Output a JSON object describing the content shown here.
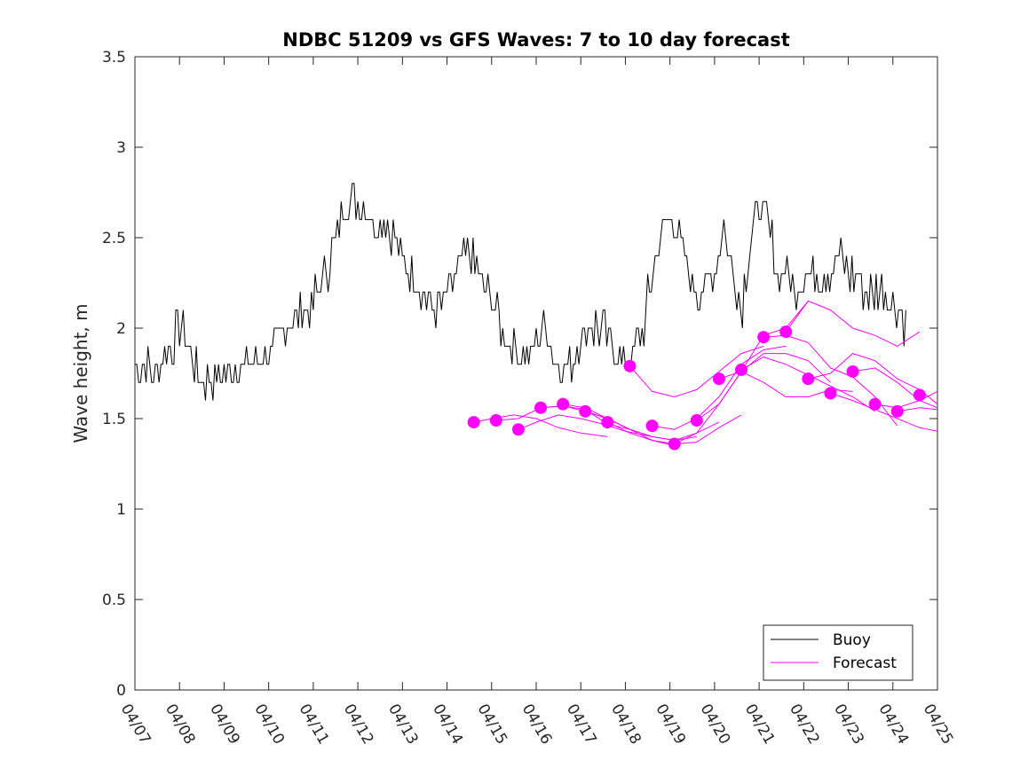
{
  "chart_data": {
    "type": "line",
    "title": "NDBC 51209 vs GFS Waves: 7 to 10 day forecast",
    "xlabel": "",
    "ylabel": "Wave height, m",
    "xlim": [
      "04/07",
      "04/25"
    ],
    "ylim": [
      0,
      3.5
    ],
    "x_tick_labels": [
      "04/07",
      "04/08",
      "04/09",
      "04/10",
      "04/11",
      "04/12",
      "04/13",
      "04/14",
      "04/15",
      "04/16",
      "04/17",
      "04/18",
      "04/19",
      "04/20",
      "04/21",
      "04/22",
      "04/23",
      "04/24",
      "04/25"
    ],
    "y_ticks": [
      0,
      0.5,
      1,
      1.5,
      2,
      2.5,
      3,
      3.5
    ],
    "y_tick_labels": [
      "0",
      "0.5",
      "1",
      "1.5",
      "2",
      "2.5",
      "3",
      "3.5"
    ],
    "grid": false,
    "legend_position": "bottom-right",
    "colors": {
      "buoy": "#000000",
      "forecast": "#ff00ff"
    },
    "buoy": {
      "name": "Buoy",
      "days": [
        0,
        0.2,
        0.4,
        0.6,
        0.8,
        1.0,
        1.2,
        1.4,
        1.6,
        1.8,
        2.0,
        2.2,
        2.4,
        2.6,
        2.8,
        3.0,
        3.2,
        3.4,
        3.6,
        3.8,
        4.0,
        4.2,
        4.4,
        4.6,
        4.8,
        5.0,
        5.2,
        5.4,
        5.6,
        5.8,
        6.0,
        6.2,
        6.4,
        6.6,
        6.8,
        7.0,
        7.2,
        7.4,
        7.6,
        7.8,
        8.0,
        8.2,
        8.4,
        8.6,
        8.8,
        9.0,
        9.2,
        9.4,
        9.6,
        9.8,
        10.0,
        10.2,
        10.4,
        10.6,
        10.8,
        11.0,
        11.2,
        11.4,
        11.6,
        11.8,
        12.0,
        12.2,
        12.4,
        12.6,
        12.8,
        13.0,
        13.2,
        13.4,
        13.6,
        13.8,
        14.0,
        14.2,
        14.4,
        14.6,
        14.8,
        15.0,
        15.2,
        15.4,
        15.6,
        15.8,
        16.0,
        16.2,
        16.4,
        16.6,
        16.8,
        17.0,
        17.2,
        17.3
      ],
      "values": [
        1.8,
        1.8,
        1.75,
        1.8,
        1.9,
        2.0,
        1.9,
        1.75,
        1.7,
        1.7,
        1.75,
        1.8,
        1.8,
        1.85,
        1.85,
        1.85,
        1.9,
        2.0,
        2.05,
        2.1,
        2.15,
        2.25,
        2.4,
        2.6,
        2.7,
        2.7,
        2.65,
        2.55,
        2.6,
        2.5,
        2.4,
        2.3,
        2.2,
        2.15,
        2.1,
        2.2,
        2.3,
        2.4,
        2.35,
        2.25,
        2.15,
        2.0,
        1.9,
        1.85,
        1.8,
        1.95,
        2.0,
        1.85,
        1.75,
        1.8,
        1.95,
        2.0,
        2.0,
        1.95,
        1.85,
        1.8,
        1.85,
        2.0,
        2.3,
        2.5,
        2.6,
        2.5,
        2.3,
        2.2,
        2.2,
        2.3,
        2.6,
        2.3,
        2.1,
        2.5,
        2.7,
        2.6,
        2.3,
        2.3,
        2.2,
        2.3,
        2.35,
        2.3,
        2.3,
        2.4,
        2.3,
        2.3,
        2.2,
        2.2,
        2.2,
        2.15,
        2.05,
        2.0
      ]
    },
    "forecast": {
      "name": "Forecast",
      "markers": [
        {
          "day": 7.6,
          "value": 1.48
        },
        {
          "day": 8.1,
          "value": 1.49
        },
        {
          "day": 8.6,
          "value": 1.44
        },
        {
          "day": 9.1,
          "value": 1.56
        },
        {
          "day": 9.6,
          "value": 1.58
        },
        {
          "day": 10.1,
          "value": 1.54
        },
        {
          "day": 10.6,
          "value": 1.48
        },
        {
          "day": 11.1,
          "value": 1.79
        },
        {
          "day": 11.6,
          "value": 1.46
        },
        {
          "day": 12.1,
          "value": 1.36
        },
        {
          "day": 12.6,
          "value": 1.49
        },
        {
          "day": 13.1,
          "value": 1.72
        },
        {
          "day": 13.6,
          "value": 1.77
        },
        {
          "day": 14.1,
          "value": 1.95
        },
        {
          "day": 14.6,
          "value": 1.98
        },
        {
          "day": 15.1,
          "value": 1.72
        },
        {
          "day": 15.6,
          "value": 1.64
        },
        {
          "day": 16.1,
          "value": 1.76
        },
        {
          "day": 16.6,
          "value": 1.58
        },
        {
          "day": 17.1,
          "value": 1.54
        },
        {
          "day": 17.6,
          "value": 1.63
        }
      ],
      "traces": [
        {
          "days": [
            7.6,
            8.0,
            8.5,
            9.0,
            9.5,
            10.0,
            10.6
          ],
          "values": [
            1.48,
            1.5,
            1.52,
            1.5,
            1.45,
            1.42,
            1.4
          ]
        },
        {
          "days": [
            8.1,
            8.6,
            9.1,
            9.6,
            10.1,
            10.6,
            11.1
          ],
          "values": [
            1.49,
            1.5,
            1.56,
            1.57,
            1.55,
            1.47,
            1.44
          ]
        },
        {
          "days": [
            8.6,
            9.0,
            9.5,
            10.0,
            10.5,
            11.0,
            11.6
          ],
          "values": [
            1.44,
            1.48,
            1.52,
            1.5,
            1.47,
            1.43,
            1.4
          ]
        },
        {
          "days": [
            9.1,
            9.6,
            10.1,
            10.6,
            11.1,
            11.6,
            12.1
          ],
          "values": [
            1.56,
            1.57,
            1.54,
            1.5,
            1.44,
            1.38,
            1.35
          ]
        },
        {
          "days": [
            9.6,
            10.1,
            10.6,
            11.1,
            11.6,
            12.1,
            12.6
          ],
          "values": [
            1.58,
            1.56,
            1.5,
            1.44,
            1.4,
            1.38,
            1.4
          ]
        },
        {
          "days": [
            10.1,
            10.6,
            11.1,
            11.6,
            12.1,
            12.6,
            13.1
          ],
          "values": [
            1.54,
            1.5,
            1.44,
            1.4,
            1.38,
            1.42,
            1.48
          ]
        },
        {
          "days": [
            10.6,
            11.1,
            11.6,
            12.1,
            12.6,
            13.1,
            13.6
          ],
          "values": [
            1.48,
            1.42,
            1.38,
            1.36,
            1.37,
            1.45,
            1.52
          ]
        },
        {
          "days": [
            11.1,
            11.6,
            12.1,
            12.6,
            13.1,
            13.6,
            14.1
          ],
          "values": [
            1.79,
            1.65,
            1.62,
            1.66,
            1.76,
            1.86,
            1.9
          ]
        },
        {
          "days": [
            11.6,
            12.1,
            12.6,
            13.1,
            13.6,
            14.1,
            14.6
          ],
          "values": [
            1.46,
            1.44,
            1.5,
            1.62,
            1.8,
            1.88,
            1.9
          ]
        },
        {
          "days": [
            12.1,
            12.6,
            13.1,
            13.6,
            14.1,
            14.6,
            15.1
          ],
          "values": [
            1.36,
            1.42,
            1.58,
            1.76,
            1.96,
            2.0,
            2.15
          ]
        },
        {
          "days": [
            12.6,
            13.1,
            13.6,
            14.1,
            14.6,
            15.1,
            15.6
          ],
          "values": [
            1.49,
            1.58,
            1.76,
            1.86,
            1.86,
            1.82,
            1.7
          ]
        },
        {
          "days": [
            13.1,
            13.6,
            14.1,
            14.6,
            15.1,
            15.6,
            16.1
          ],
          "values": [
            1.72,
            1.76,
            1.7,
            1.62,
            1.62,
            1.66,
            1.65
          ]
        },
        {
          "days": [
            13.6,
            14.1,
            14.6,
            15.1,
            15.6,
            16.1,
            16.6
          ],
          "values": [
            1.77,
            1.84,
            1.8,
            1.74,
            1.68,
            1.62,
            1.54
          ]
        },
        {
          "days": [
            14.1,
            14.6,
            15.1,
            15.6,
            16.1,
            16.6,
            17.1
          ],
          "values": [
            1.95,
            1.96,
            1.92,
            1.78,
            1.73,
            1.62,
            1.46
          ]
        },
        {
          "days": [
            14.6,
            15.1,
            15.6,
            16.1,
            16.6,
            17.1,
            17.6
          ],
          "values": [
            1.98,
            2.15,
            2.1,
            2.0,
            1.96,
            1.9,
            1.98
          ]
        },
        {
          "days": [
            15.1,
            15.6,
            16.1,
            16.6,
            17.1,
            17.6,
            18.0
          ],
          "values": [
            1.72,
            1.75,
            1.86,
            1.82,
            1.72,
            1.66,
            1.58
          ]
        },
        {
          "days": [
            15.6,
            16.1,
            16.6,
            17.1,
            17.6,
            18.0
          ],
          "values": [
            1.64,
            1.6,
            1.55,
            1.5,
            1.45,
            1.43
          ]
        },
        {
          "days": [
            16.1,
            16.6,
            17.1,
            17.6,
            18.0
          ],
          "values": [
            1.76,
            1.78,
            1.7,
            1.6,
            1.56
          ]
        },
        {
          "days": [
            16.6,
            17.1,
            17.6,
            18.0
          ],
          "values": [
            1.58,
            1.56,
            1.6,
            1.65
          ]
        },
        {
          "days": [
            17.1,
            17.6,
            18.0
          ],
          "values": [
            1.54,
            1.56,
            1.55
          ]
        }
      ]
    }
  }
}
